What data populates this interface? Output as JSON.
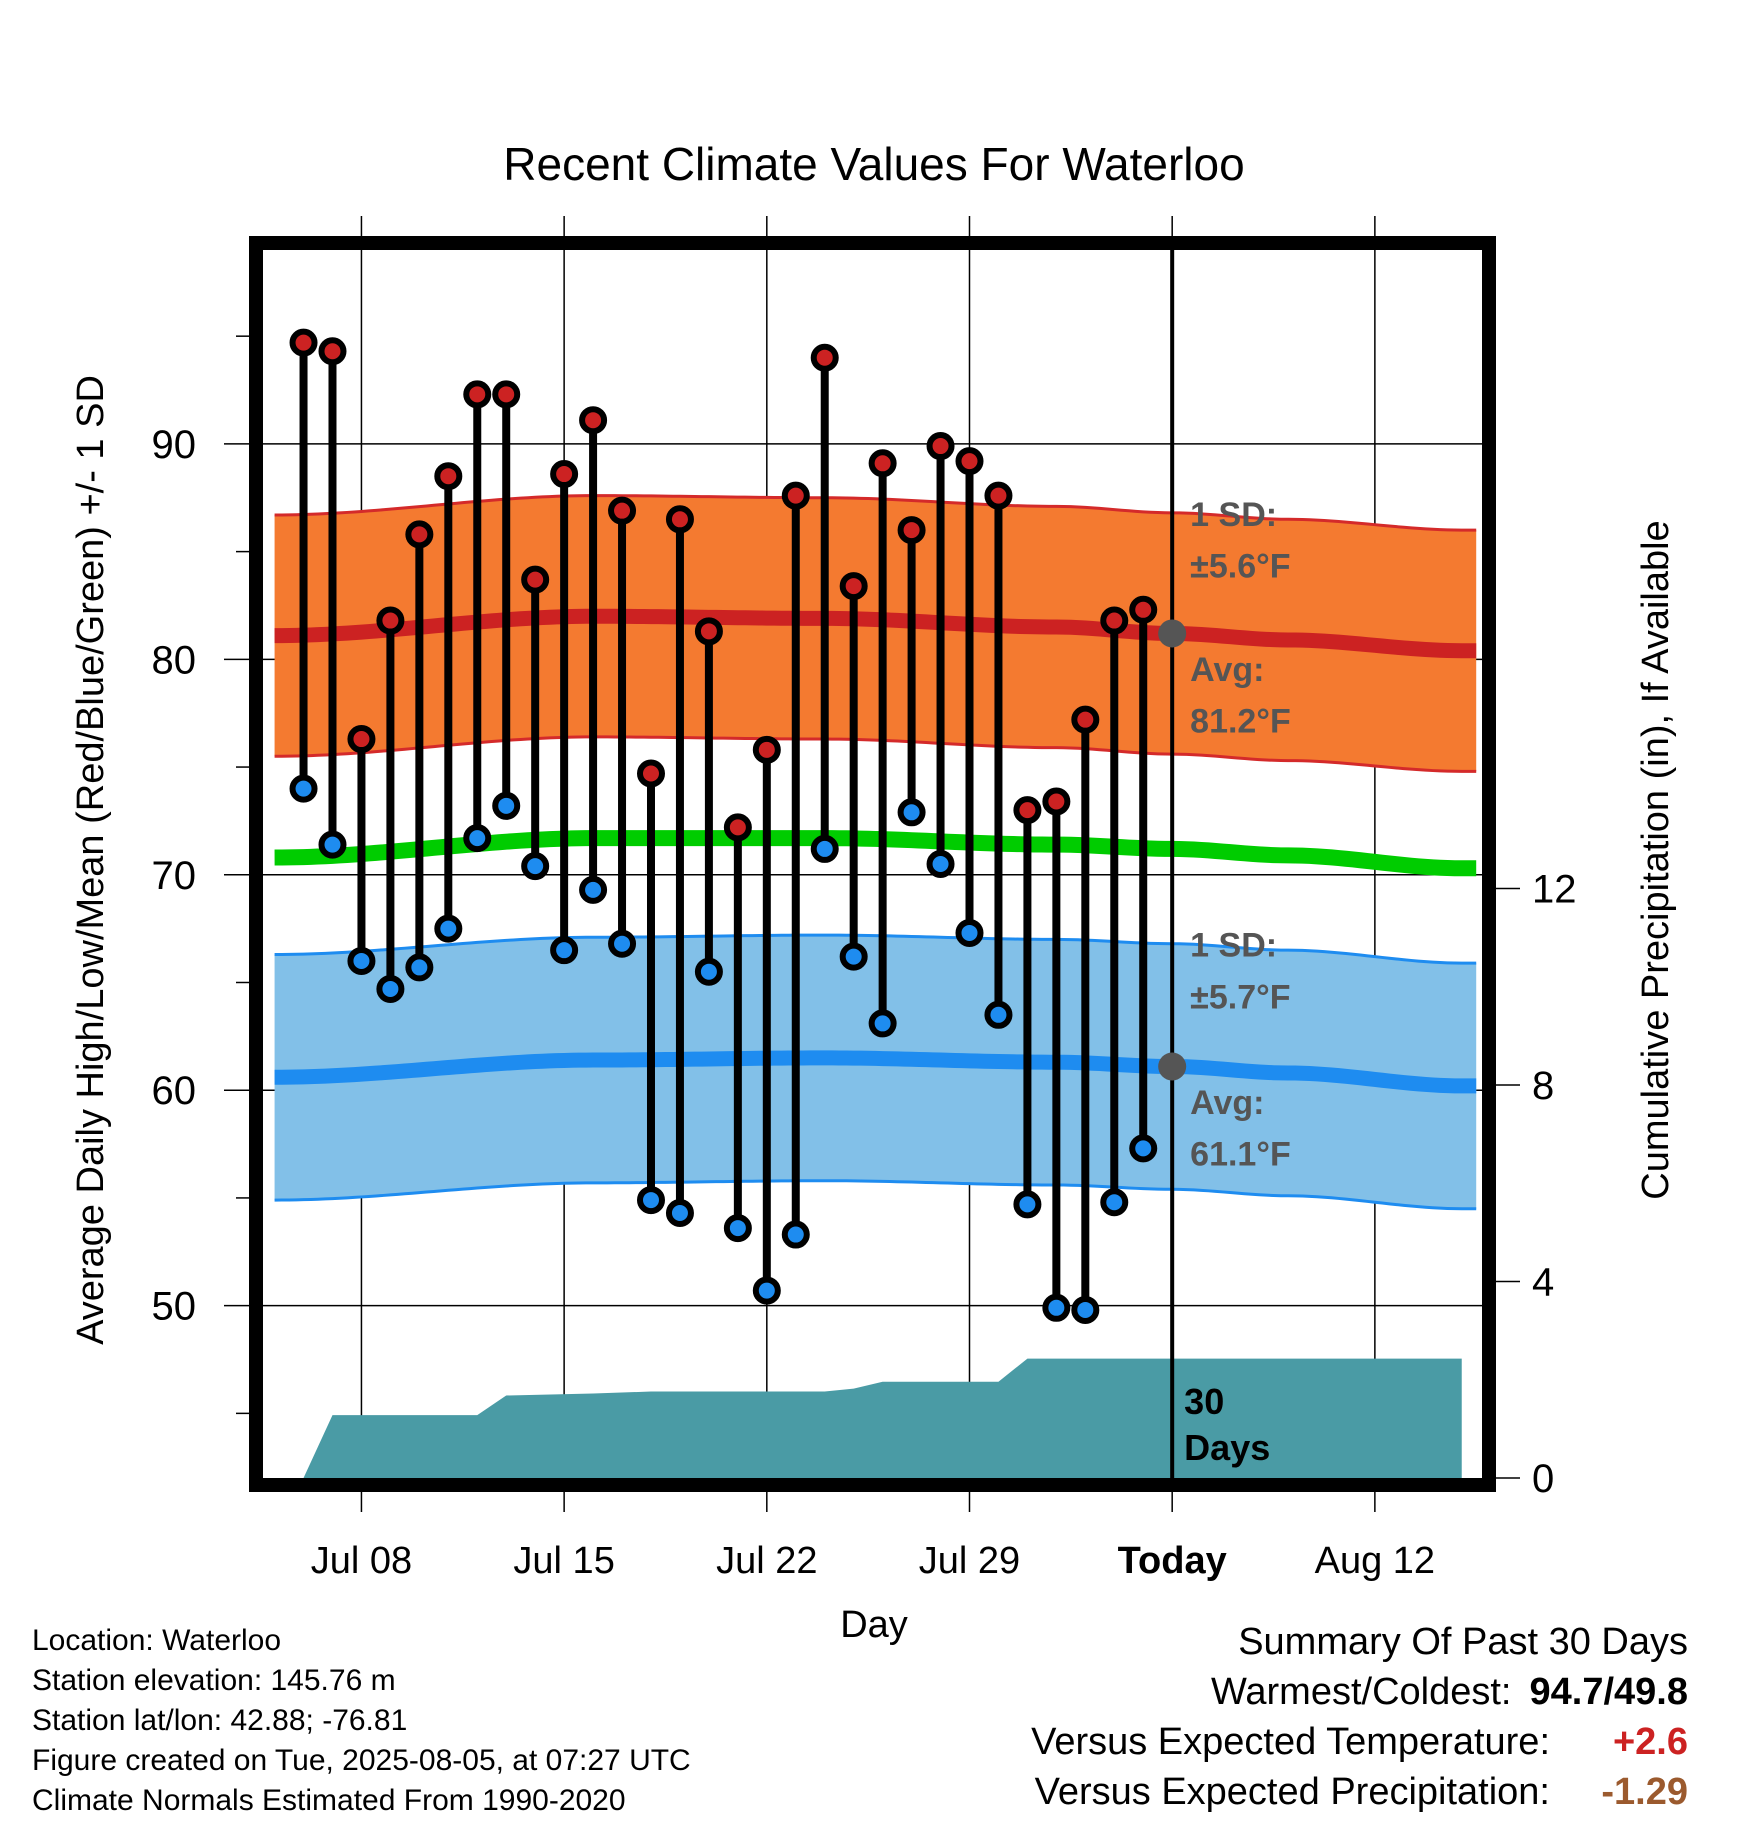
{
  "chart_data": {
    "type": "line",
    "title": "Recent Climate Values For Waterloo",
    "xlabel": "Day",
    "ylabel": "Average Daily High/Low/Mean (Red/Blue/Green) +/- 1 SD",
    "ylabel_right": "Cumulative Precipitation (in), If Available",
    "ylim": [
      42,
      99
    ],
    "ylim_right": [
      0,
      25
    ],
    "xlim_days": [
      -31.4,
      10.7
    ],
    "x_unit": "days relative to today (2025-08-05)",
    "y_ticks": [
      50,
      60,
      70,
      80,
      90
    ],
    "y_ticks_right": [
      0,
      4,
      8,
      12
    ],
    "x_ticks": [
      {
        "day": -28,
        "label": "Jul 08"
      },
      {
        "day": -21,
        "label": "Jul 15"
      },
      {
        "day": -14,
        "label": "Jul 22"
      },
      {
        "day": -7,
        "label": "Jul 29"
      },
      {
        "day": 0,
        "label": "Today"
      },
      {
        "day": 7,
        "label": "Aug 12"
      }
    ],
    "today_line": {
      "day": 0,
      "label": "30 Days"
    },
    "series": [
      {
        "name": "Daily High",
        "color": "#cc2222",
        "x": [
          -30,
          -29,
          -28,
          -27,
          -26,
          -25,
          -24,
          -23,
          -22,
          -21,
          -20,
          -19,
          -18,
          -17,
          -16,
          -15,
          -14,
          -13,
          -12,
          -11,
          -10,
          -9,
          -8,
          -7,
          -6,
          -5,
          -4,
          -3,
          -2,
          -1
        ],
        "values": [
          94.7,
          94.3,
          76.3,
          81.8,
          85.8,
          88.5,
          92.3,
          92.3,
          83.7,
          88.6,
          91.1,
          86.9,
          74.7,
          86.5,
          81.3,
          72.2,
          75.8,
          87.6,
          94.0,
          83.4,
          89.1,
          86.0,
          89.9,
          89.2,
          87.6,
          73.0,
          73.4,
          77.2,
          81.8,
          82.3
        ]
      },
      {
        "name": "Daily Low",
        "color": "#1e8cf0",
        "x": [
          -30,
          -29,
          -28,
          -27,
          -26,
          -25,
          -24,
          -23,
          -22,
          -21,
          -20,
          -19,
          -18,
          -17,
          -16,
          -15,
          -14,
          -13,
          -12,
          -11,
          -10,
          -9,
          -8,
          -7,
          -6,
          -5,
          -4,
          -3,
          -2,
          -1
        ],
        "values": [
          74.0,
          71.4,
          66.0,
          64.7,
          65.7,
          67.5,
          71.7,
          73.2,
          70.4,
          66.5,
          69.3,
          66.8,
          54.9,
          54.3,
          65.5,
          53.6,
          50.7,
          53.3,
          71.2,
          66.2,
          63.1,
          72.9,
          70.5,
          67.3,
          63.5,
          54.7,
          49.9,
          49.8,
          54.8,
          57.3
        ]
      },
      {
        "name": "Normal High",
        "color": "#cc2222",
        "x": [
          -31,
          -20,
          -12,
          -4,
          0,
          4,
          10
        ],
        "values": [
          81.1,
          82.0,
          81.9,
          81.5,
          81.2,
          80.9,
          80.4
        ]
      },
      {
        "name": "Normal Low",
        "color": "#1e8cf0",
        "x": [
          -31,
          -20,
          -12,
          -4,
          0,
          4,
          10
        ],
        "values": [
          60.6,
          61.4,
          61.5,
          61.3,
          61.1,
          60.8,
          60.2
        ]
      },
      {
        "name": "Normal Mean",
        "color": "#00cc00",
        "x": [
          -31,
          -20,
          -12,
          -4,
          0,
          4,
          10
        ],
        "values": [
          70.8,
          71.7,
          71.7,
          71.4,
          71.2,
          70.9,
          70.3
        ]
      },
      {
        "name": "Cumulative Precipitation",
        "color": "#4a9ba5",
        "x": [
          -30,
          -29,
          -24,
          -23,
          -20,
          -18,
          -12,
          -11,
          -10,
          -9,
          -6,
          -5,
          -4,
          10
        ],
        "values": [
          0.0,
          1.28,
          1.28,
          1.68,
          1.72,
          1.76,
          1.76,
          1.82,
          1.96,
          1.96,
          1.96,
          2.43,
          2.43,
          2.43
        ]
      }
    ],
    "bands": [
      {
        "label": "1 SD:",
        "value": "±5.6°F",
        "color": "#f47a30",
        "sd": 5.6
      },
      {
        "label": "1 SD:",
        "value": "±5.7°F",
        "color": "#82c0e8",
        "sd": 5.7
      }
    ],
    "avg_labels": [
      {
        "label": "Avg:",
        "value": "81.2°F",
        "y": 81.2
      },
      {
        "label": "Avg:",
        "value": "61.1°F",
        "y": 61.1
      }
    ],
    "grid": true
  },
  "info": {
    "location": "Location: Waterloo",
    "elevation": "Station elevation: 145.76 m",
    "latlon": "Station lat/lon: 42.88; -76.81",
    "created": "Figure created on Tue, 2025-08-05, at 07:27 UTC",
    "normals": "Climate Normals Estimated From 1990-2020"
  },
  "summary": {
    "title": "Summary Of Past 30 Days",
    "warmest_label": "Warmest/Coldest:",
    "warmest_value": "94.7",
    "coldest_value": "/49.8",
    "temp_label": "Versus Expected Temperature:",
    "temp_value": "+2.6",
    "temp_color": "#cc2222",
    "precip_label": "Versus Expected Precipitation:",
    "precip_value": "-1.29",
    "precip_color": "#9b5a2e"
  }
}
